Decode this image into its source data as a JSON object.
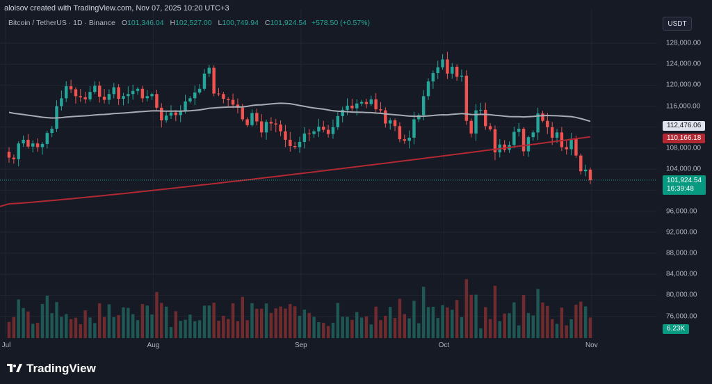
{
  "header": {
    "attribution": "aloisov created with TradingView.com, Nov 07, 2025 10:20 UTC+3"
  },
  "legend": {
    "symbol": "Bitcoin / TetherUS · 1D · Binance",
    "o_label": "O",
    "o_value": "101,346.04",
    "h_label": "H",
    "h_value": "102,527.00",
    "l_label": "L",
    "l_value": "100,749.94",
    "c_label": "C",
    "c_value": "101,924.54",
    "change": "+578.50 (+0.57%)"
  },
  "currency_badge": "USDT",
  "tags": {
    "sma50": "112,476.06",
    "sma200": "110,166.18",
    "last_price": "101,924.54",
    "countdown": "16:39:48",
    "volume": "6.23K"
  },
  "logo": {
    "text": "TradingView"
  },
  "colors": {
    "background": "#161a25",
    "up": "#26a69a",
    "down": "#ef5350",
    "sma50": "#a8abb3",
    "sma200": "#b22833"
  },
  "chart_data": {
    "type": "candlestick",
    "title": "Bitcoin / TetherUS · 1D · Binance",
    "y_axis": {
      "ticks": [
        "128,000.00",
        "124,000.00",
        "120,000.00",
        "116,000.00",
        "112,000.00",
        "108,000.00",
        "104,000.00",
        "100,000.00",
        "96,000.00",
        "92,000.00",
        "88,000.00",
        "84,000.00",
        "80,000.00",
        "76,000.00"
      ],
      "ylim": [
        74000,
        130000
      ]
    },
    "x_axis": {
      "ticks": [
        {
          "label": "Jul",
          "date": "2025-07-01"
        },
        {
          "label": "Aug",
          "date": "2025-08-01"
        },
        {
          "label": "Sep",
          "date": "2025-09-01"
        },
        {
          "label": "Oct",
          "date": "2025-10-01"
        },
        {
          "label": "Nov",
          "date": "2025-11-01"
        }
      ]
    },
    "grid": true,
    "closes": [
      106200,
      105900,
      108900,
      109600,
      108300,
      108900,
      108200,
      108800,
      110900,
      111700,
      116000,
      117500,
      119800,
      119200,
      117900,
      117700,
      117300,
      118700,
      119900,
      117800,
      117200,
      118300,
      119600,
      117400,
      117900,
      118300,
      118900,
      119300,
      117500,
      117900,
      118300,
      115700,
      113300,
      114200,
      114800,
      114300,
      115100,
      116900,
      117500,
      118600,
      119300,
      122200,
      123300,
      118400,
      118300,
      117400,
      117200,
      116300,
      115700,
      113500,
      112400,
      114700,
      113100,
      111000,
      113000,
      112700,
      112500,
      111200,
      109600,
      108400,
      108200,
      109200,
      110800,
      110700,
      111200,
      112100,
      111500,
      110700,
      112000,
      114100,
      115300,
      116100,
      115600,
      116500,
      116800,
      116400,
      117300,
      115400,
      115200,
      112700,
      113300,
      112200,
      109700,
      109400,
      110000,
      113500,
      114300,
      117900,
      120700,
      122300,
      123400,
      124900,
      122200,
      123500,
      121600,
      121800,
      113200,
      110800,
      115200,
      115300,
      112200,
      111600,
      107200,
      108700,
      107700,
      108600,
      111100,
      111700,
      107400,
      110100,
      111000,
      114600,
      113200,
      112000,
      110000,
      111000,
      108200,
      107800,
      109800,
      106600,
      103600,
      103900,
      101900
    ],
    "sma50_end": 112476.06,
    "sma200_end": 110166.18,
    "last_price": 101924.54,
    "volume_last": "6.23K"
  }
}
